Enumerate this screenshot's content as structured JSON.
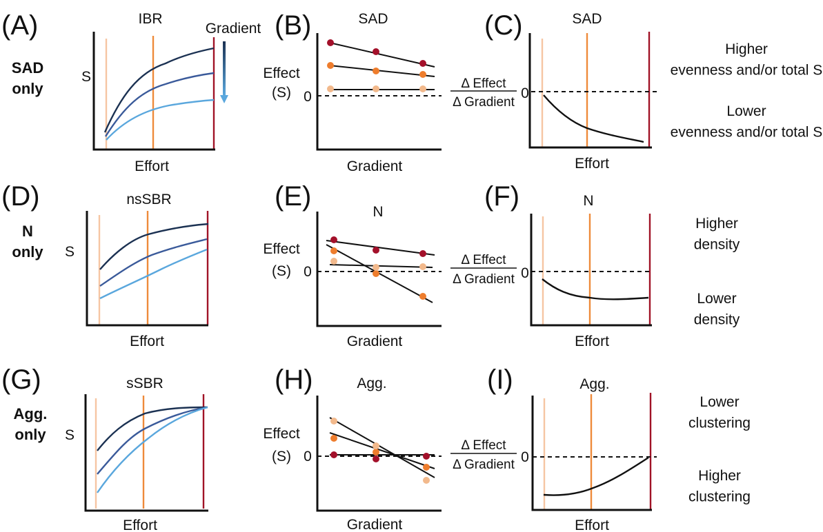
{
  "colors": {
    "dark_curve": "#1b3152",
    "mid_curve": "#3a5a9a",
    "light_curve": "#5aa7dd",
    "light_effort": "#f6c5a3",
    "mid_effort": "#ee8a3a",
    "high_effort": "#a01226",
    "dot_dark": "#a3102a",
    "dot_mid": "#ee7d2d",
    "dot_light": "#f2b98c",
    "arrow_top": "#1b3152",
    "arrow_bottom": "#5aa7dd"
  },
  "rows": [
    {
      "label_line1": "SAD",
      "label_line2": "only",
      "interp_top": "Higher\nevenness and/or total S",
      "interp_bottom": "Lower\nevenness and/or total S",
      "panels": [
        {
          "letter": "(A)",
          "title": "IBR",
          "xlabel": "Effort",
          "ylabel": "S",
          "gradient_label": "Gradient"
        },
        {
          "letter": "(B)",
          "title": "SAD",
          "xlabel": "Gradient",
          "ylabel1": "Effect",
          "ylabel2": "(S)",
          "zero": "0"
        },
        {
          "letter": "(C)",
          "title": "SAD",
          "xlabel": "Effort",
          "zero": "0"
        }
      ]
    },
    {
      "label_line1": "N",
      "label_line2": "only",
      "interp_top": "Higher\ndensity",
      "interp_bottom": "Lower\ndensity",
      "panels": [
        {
          "letter": "(D)",
          "title": "nsSBR",
          "xlabel": "Effort",
          "ylabel": "S"
        },
        {
          "letter": "(E)",
          "title": "N",
          "xlabel": "Gradient",
          "ylabel1": "Effect",
          "ylabel2": "(S)",
          "zero": "0"
        },
        {
          "letter": "(F)",
          "title": "N",
          "xlabel": "Effort",
          "zero": "0"
        }
      ]
    },
    {
      "label_line1": "Agg.",
      "label_line2": "only",
      "interp_top": "Lower\nclustering",
      "interp_bottom": "Higher\nclustering",
      "panels": [
        {
          "letter": "(G)",
          "title": "sSBR",
          "xlabel": "Effort",
          "ylabel": "S"
        },
        {
          "letter": "(H)",
          "title": "Agg.",
          "xlabel": "Gradient",
          "ylabel1": "Effect",
          "ylabel2": "(S)",
          "zero": "0"
        },
        {
          "letter": "(I)",
          "title": "Agg.",
          "xlabel": "Effort",
          "zero": "0"
        }
      ]
    }
  ],
  "ratio": {
    "numerator": "Δ Effect",
    "denominator": "Δ Gradient"
  }
}
